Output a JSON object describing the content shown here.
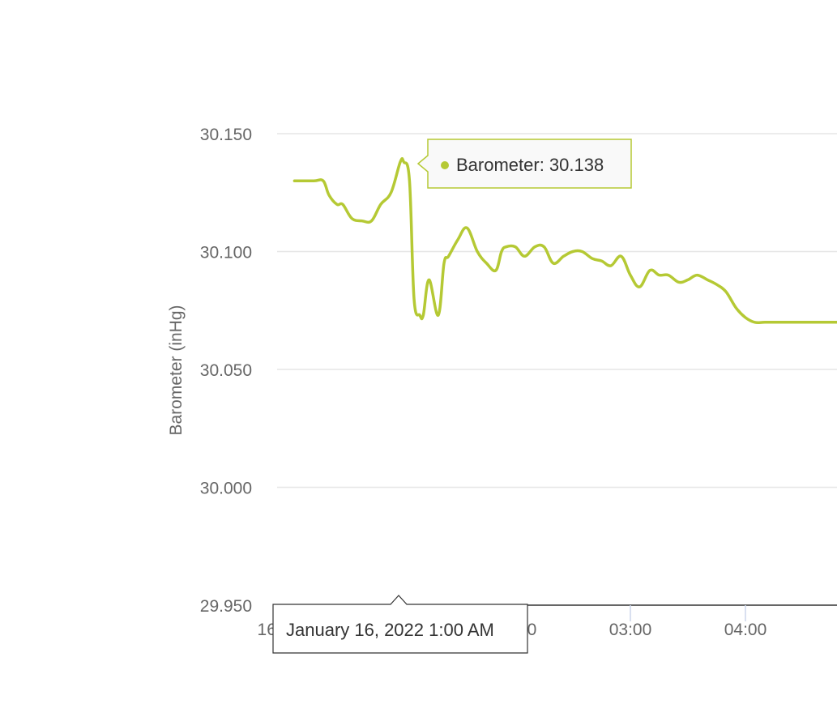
{
  "chart_data": {
    "type": "line",
    "title": "",
    "xlabel": "",
    "ylabel": "Barometer (inHg)",
    "ylim": [
      29.95,
      30.15
    ],
    "y_ticks": [
      "30.150",
      "30.100",
      "30.050",
      "30.000",
      "29.950"
    ],
    "x_ticks": [
      {
        "label": "16. Jan",
        "hour": 0
      },
      {
        "label": "01:00",
        "hour": 1
      },
      {
        "label": "02:00",
        "hour": 2
      },
      {
        "label": "03:00",
        "hour": 3
      },
      {
        "label": "04:00",
        "hour": 4
      }
    ],
    "x_unit": "hours after 16. Jan 00:00",
    "grid": true,
    "series": [
      {
        "name": "Barometer",
        "color": "#b5c934",
        "x": [
          0.08,
          0.25,
          0.33,
          0.38,
          0.45,
          0.5,
          0.58,
          0.67,
          0.75,
          0.83,
          0.92,
          1.0,
          1.03,
          1.08,
          1.12,
          1.17,
          1.2,
          1.25,
          1.33,
          1.38,
          1.42,
          1.5,
          1.58,
          1.67,
          1.75,
          1.83,
          1.88,
          1.92,
          2.0,
          2.08,
          2.17,
          2.25,
          2.33,
          2.42,
          2.5,
          2.58,
          2.67,
          2.75,
          2.83,
          2.92,
          3.0,
          3.08,
          3.17,
          3.25,
          3.33,
          3.42,
          3.5,
          3.58,
          3.67,
          3.75,
          3.83,
          3.92,
          4.0,
          4.08,
          4.17,
          4.33,
          4.5,
          4.75,
          4.9
        ],
        "values": [
          30.13,
          30.13,
          30.13,
          30.124,
          30.12,
          30.12,
          30.114,
          30.113,
          30.113,
          30.12,
          30.125,
          30.138,
          30.138,
          30.13,
          30.08,
          30.073,
          30.073,
          30.088,
          30.073,
          30.095,
          30.098,
          30.105,
          30.11,
          30.1,
          30.095,
          30.092,
          30.1,
          30.102,
          30.102,
          30.098,
          30.102,
          30.102,
          30.095,
          30.098,
          30.1,
          30.1,
          30.097,
          30.096,
          30.094,
          30.098,
          30.09,
          30.085,
          30.092,
          30.09,
          30.09,
          30.087,
          30.088,
          30.09,
          30.088,
          30.086,
          30.083,
          30.076,
          30.072,
          30.07,
          30.07,
          30.07,
          30.07,
          30.07,
          30.07
        ]
      }
    ],
    "tooltip": {
      "label": "Barometer: 30.138",
      "x_label": "January 16, 2022 1:00 AM",
      "hour": 1.0,
      "value": 30.138
    }
  }
}
